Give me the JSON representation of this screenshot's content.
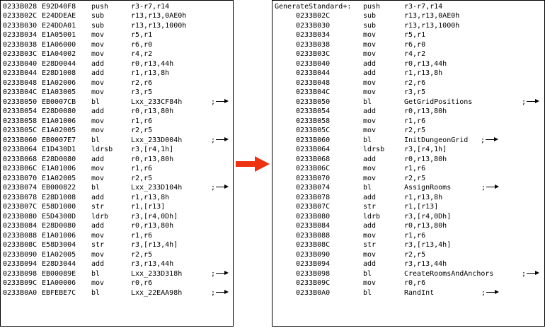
{
  "left": [
    {
      "addr": "0233B028",
      "hex": "E92D40F8",
      "mn": "push",
      "op": "r3-r7,r14",
      "ref": false
    },
    {
      "addr": "0233B02C",
      "hex": "E24DDEAE",
      "mn": "sub",
      "op": "r13,r13,0AE0h",
      "ref": false
    },
    {
      "addr": "0233B030",
      "hex": "E24DDA01",
      "mn": "sub",
      "op": "r13,r13,1000h",
      "ref": false
    },
    {
      "addr": "0233B034",
      "hex": "E1A05001",
      "mn": "mov",
      "op": "r5,r1",
      "ref": false
    },
    {
      "addr": "0233B038",
      "hex": "E1A06000",
      "mn": "mov",
      "op": "r6,r0",
      "ref": false
    },
    {
      "addr": "0233B03C",
      "hex": "E1A04002",
      "mn": "mov",
      "op": "r4,r2",
      "ref": false
    },
    {
      "addr": "0233B040",
      "hex": "E28D0044",
      "mn": "add",
      "op": "r0,r13,44h",
      "ref": false
    },
    {
      "addr": "0233B044",
      "hex": "E28D1008",
      "mn": "add",
      "op": "r1,r13,8h",
      "ref": false
    },
    {
      "addr": "0233B048",
      "hex": "E1A02006",
      "mn": "mov",
      "op": "r2,r6",
      "ref": false
    },
    {
      "addr": "0233B04C",
      "hex": "E1A03005",
      "mov": "",
      "mn": "mov",
      "op": "r3,r5",
      "ref": false
    },
    {
      "addr": "0233B050",
      "hex": "EB0007CB",
      "mn": "bl",
      "op": "Lxx_233CF84h",
      "ref": true
    },
    {
      "addr": "0233B054",
      "hex": "E28D0080",
      "mn": "add",
      "op": "r0,r13,80h",
      "ref": false
    },
    {
      "addr": "0233B058",
      "hex": "E1A01006",
      "mn": "mov",
      "op": "r1,r6",
      "ref": false
    },
    {
      "addr": "0233B05C",
      "hex": "E1A02005",
      "mn": "mov",
      "op": "r2,r5",
      "ref": false
    },
    {
      "addr": "0233B060",
      "hex": "EB0007E7",
      "mn": "bl",
      "op": "Lxx_233D004h",
      "ref": true
    },
    {
      "addr": "0233B064",
      "hex": "E1D430D1",
      "mn": "ldrsb",
      "op": "r3,[r4,1h]",
      "ref": false
    },
    {
      "addr": "0233B068",
      "hex": "E28D0080",
      "mn": "add",
      "op": "r0,r13,80h",
      "ref": false
    },
    {
      "addr": "0233B06C",
      "hex": "E1A01006",
      "mn": "mov",
      "op": "r1,r6",
      "ref": false
    },
    {
      "addr": "0233B070",
      "hex": "E1A02005",
      "mn": "mov",
      "op": "r2,r5",
      "ref": false
    },
    {
      "addr": "0233B074",
      "hex": "EB000822",
      "mn": "bl",
      "op": "Lxx_233D104h",
      "ref": true
    },
    {
      "addr": "0233B078",
      "hex": "E28D1008",
      "mn": "add",
      "op": "r1,r13,8h",
      "ref": false
    },
    {
      "addr": "0233B07C",
      "hex": "E58D1000",
      "mn": "str",
      "op": "r1,[r13]",
      "ref": false
    },
    {
      "addr": "0233B080",
      "hex": "E5D4300D",
      "mn": "ldrb",
      "op": "r3,[r4,0Dh]",
      "ref": false
    },
    {
      "addr": "0233B084",
      "hex": "E28D0080",
      "mn": "add",
      "op": "r0,r13,80h",
      "ref": false
    },
    {
      "addr": "0233B088",
      "hex": "E1A01006",
      "mn": "mov",
      "op": "r1,r6",
      "ref": false
    },
    {
      "addr": "0233B08C",
      "hex": "E58D3004",
      "mn": "str",
      "op": "r3,[r13,4h]",
      "ref": false
    },
    {
      "addr": "0233B090",
      "hex": "E1A02005",
      "mn": "mov",
      "op": "r2,r5",
      "ref": false
    },
    {
      "addr": "0233B094",
      "hex": "E28D3044",
      "mn": "add",
      "op": "r3,r13,44h",
      "ref": false
    },
    {
      "addr": "0233B098",
      "hex": "EB00089E",
      "mn": "bl",
      "op": "Lxx_233D318h",
      "ref": true
    },
    {
      "addr": "0233B09C",
      "hex": "E1A00006",
      "mn": "mov",
      "op": "r0,r6",
      "ref": false
    },
    {
      "addr": "0233B0A0",
      "hex": "EBFEBE7C",
      "mn": "bl",
      "op": "Lxx_22EAA98h",
      "ref": true
    }
  ],
  "right": [
    {
      "label": "GenerateStandard+:",
      "addr": "",
      "mn": "push",
      "op": "r3-r7,r14",
      "ref": false
    },
    {
      "label": "",
      "addr": "0233B02C",
      "mn": "sub",
      "op": "r13,r13,0AE0h",
      "ref": false
    },
    {
      "label": "",
      "addr": "0233B030",
      "mn": "sub",
      "op": "r13,r13,1000h",
      "ref": false
    },
    {
      "label": "",
      "addr": "0233B034",
      "mn": "mov",
      "op": "r5,r1",
      "ref": false
    },
    {
      "label": "",
      "addr": "0233B038",
      "mn": "mov",
      "op": "r6,r0",
      "ref": false
    },
    {
      "label": "",
      "addr": "0233B03C",
      "mn": "mov",
      "op": "r4,r2",
      "ref": false
    },
    {
      "label": "",
      "addr": "0233B040",
      "mn": "add",
      "op": "r0,r13,44h",
      "ref": false
    },
    {
      "label": "",
      "addr": "0233B044",
      "mn": "add",
      "op": "r1,r13,8h",
      "ref": false
    },
    {
      "label": "",
      "addr": "0233B048",
      "mn": "mov",
      "op": "r2,r6",
      "ref": false
    },
    {
      "label": "",
      "addr": "0233B04C",
      "mn": "mov",
      "op": "r3,r5",
      "ref": false
    },
    {
      "label": "",
      "addr": "0233B050",
      "mn": "bl",
      "op": "GetGridPositions",
      "ref": true,
      "refpos": "far"
    },
    {
      "label": "",
      "addr": "0233B054",
      "mn": "add",
      "op": "r0,r13,80h",
      "ref": false
    },
    {
      "label": "",
      "addr": "0233B058",
      "mn": "mov",
      "op": "r1,r6",
      "ref": false
    },
    {
      "label": "",
      "addr": "0233B05C",
      "mn": "mov",
      "op": "r2,r5",
      "ref": false
    },
    {
      "label": "",
      "addr": "0233B060",
      "mn": "bl",
      "op": "InitDungeonGrid",
      "ref": true,
      "refpos": "inline"
    },
    {
      "label": "",
      "addr": "0233B064",
      "mn": "ldrsb",
      "op": "r3,[r4,1h]",
      "ref": false
    },
    {
      "label": "",
      "addr": "0233B068",
      "mn": "add",
      "op": "r0,r13,80h",
      "ref": false
    },
    {
      "label": "",
      "addr": "0233B06C",
      "mn": "mov",
      "op": "r1,r6",
      "ref": false
    },
    {
      "label": "",
      "addr": "0233B070",
      "mn": "mov",
      "op": "r2,r5",
      "ref": false
    },
    {
      "label": "",
      "addr": "0233B074",
      "mn": "bl",
      "op": "AssignRooms",
      "ref": true,
      "refpos": "mid"
    },
    {
      "label": "",
      "addr": "0233B078",
      "mn": "add",
      "op": "r1,r13,8h",
      "ref": false
    },
    {
      "label": "",
      "addr": "0233B07C",
      "mn": "str",
      "op": "r1,[r13]",
      "ref": false
    },
    {
      "label": "",
      "addr": "0233B080",
      "mn": "ldrb",
      "op": "r3,[r4,0Dh]",
      "ref": false
    },
    {
      "label": "",
      "addr": "0233B084",
      "mn": "add",
      "op": "r0,r13,80h",
      "ref": false
    },
    {
      "label": "",
      "addr": "0233B088",
      "mn": "mov",
      "op": "r1,r6",
      "ref": false
    },
    {
      "label": "",
      "addr": "0233B08C",
      "mn": "str",
      "op": "r3,[r13,4h]",
      "ref": false
    },
    {
      "label": "",
      "addr": "0233B090",
      "mn": "mov",
      "op": "r2,r5",
      "ref": false
    },
    {
      "label": "",
      "addr": "0233B094",
      "mn": "add",
      "op": "r3,r13,44h",
      "ref": false
    },
    {
      "label": "",
      "addr": "0233B098",
      "mn": "bl",
      "op": "CreateRoomsAndAnchors",
      "ref": true,
      "refpos": "far"
    },
    {
      "label": "",
      "addr": "0233B09C",
      "mn": "mov",
      "op": "r0,r6",
      "ref": false
    },
    {
      "label": "",
      "addr": "0233B0A0",
      "mn": "bl",
      "op": "RandInt",
      "ref": true,
      "refpos": "mid"
    }
  ],
  "ref_marker": ";",
  "arrow_color": "#ee3311"
}
